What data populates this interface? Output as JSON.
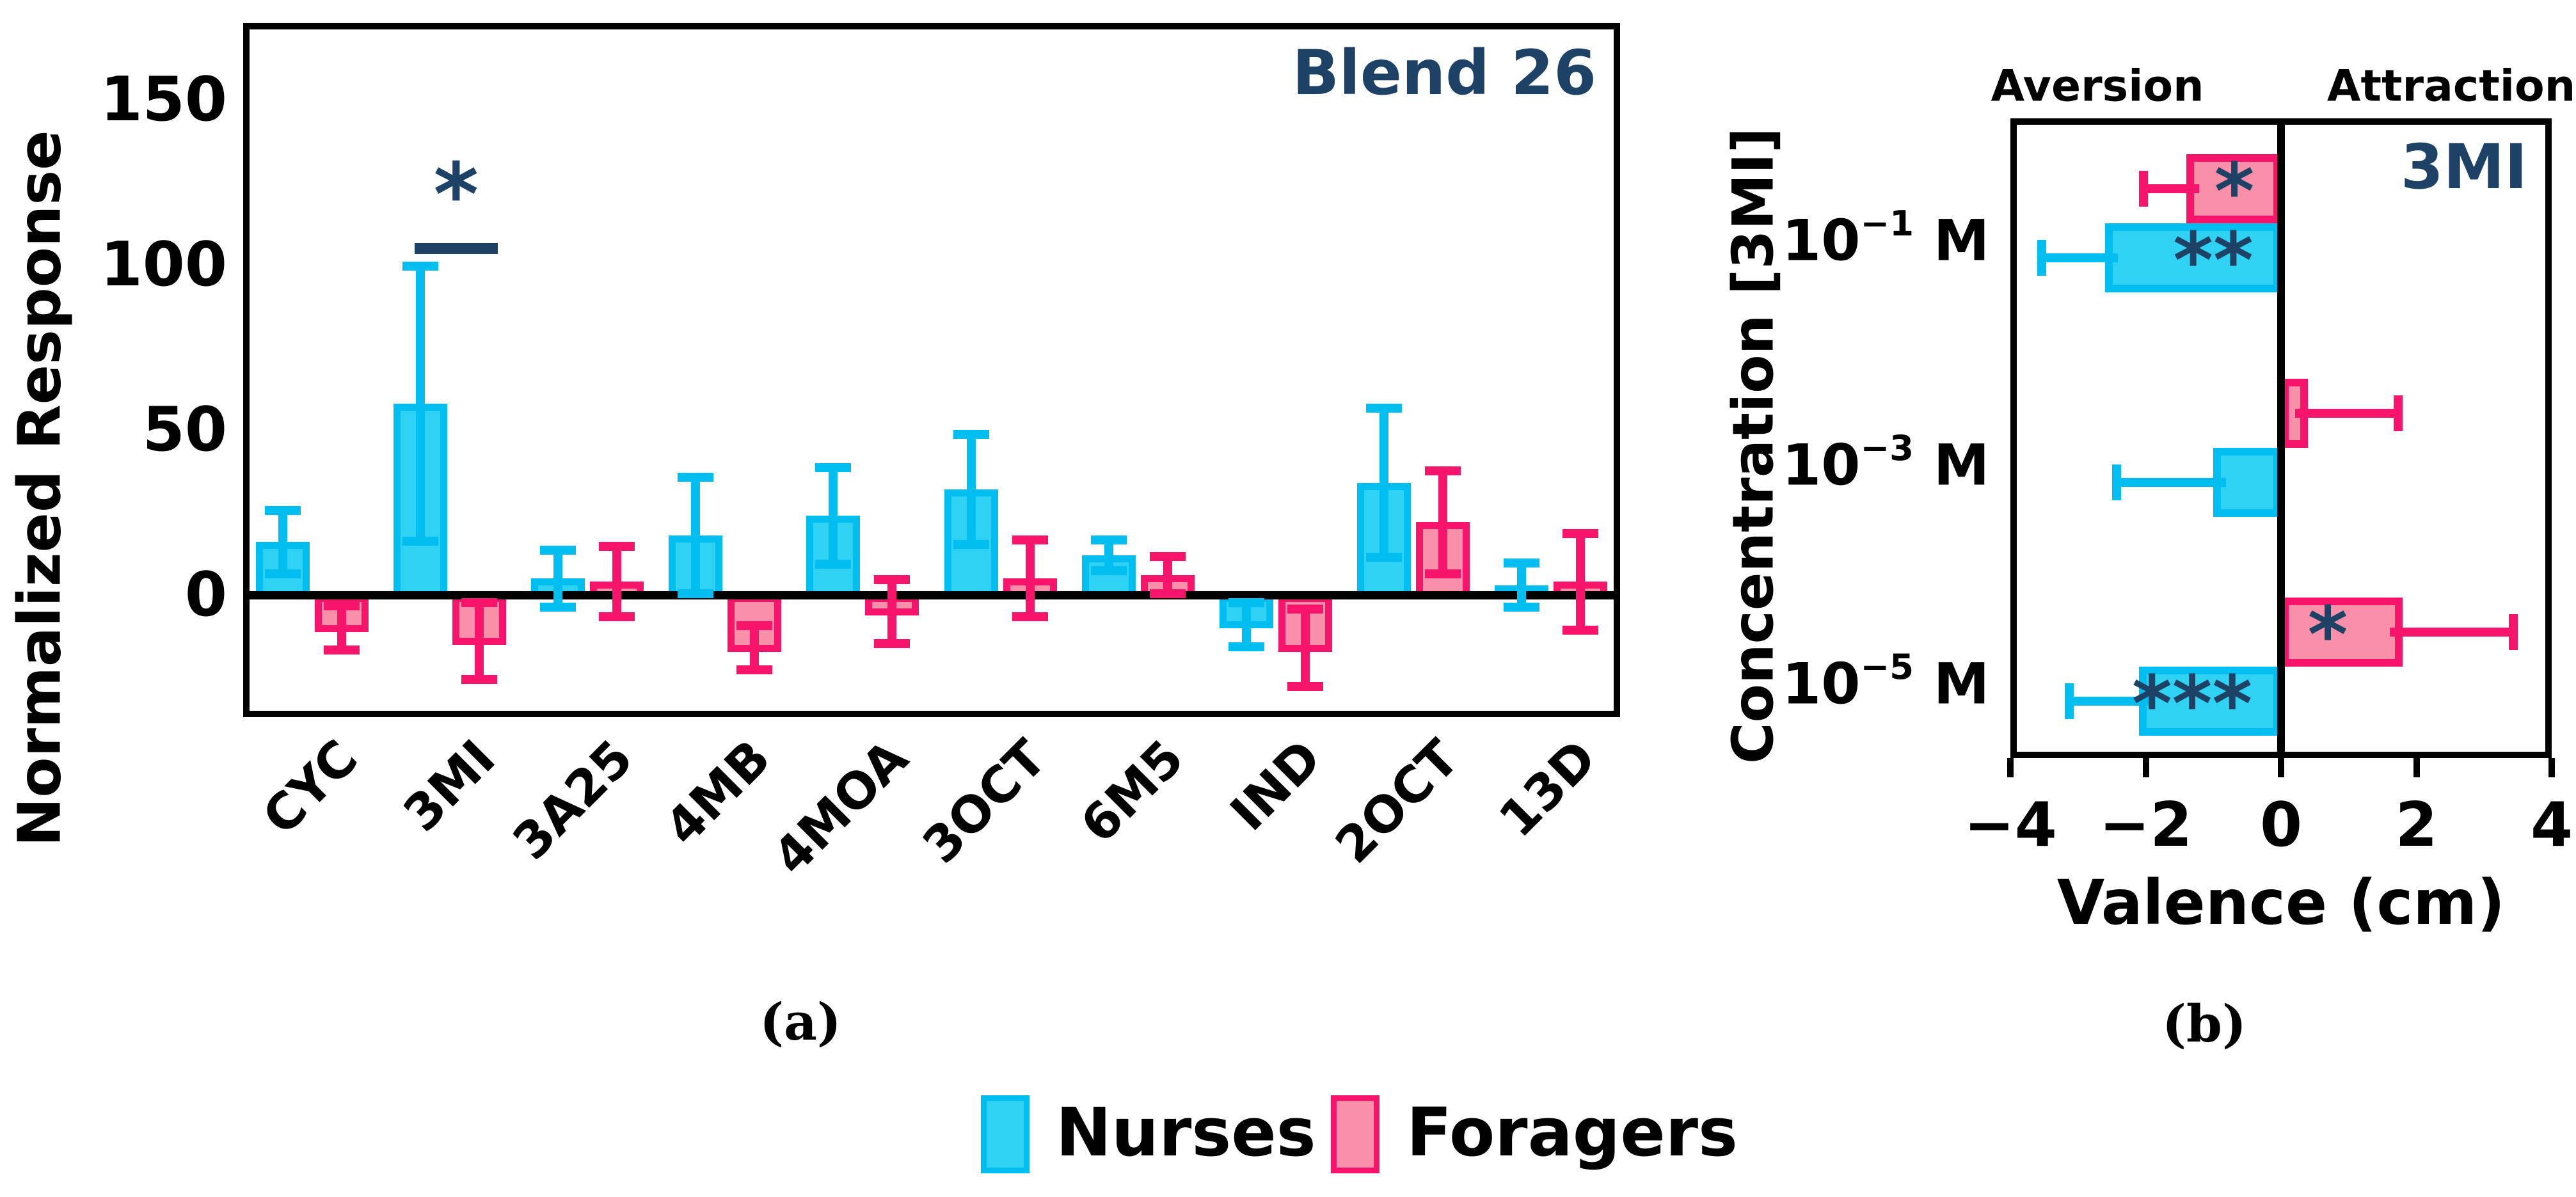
{
  "captions": {
    "a": "(a)",
    "b": "(b)"
  },
  "colors": {
    "nurses_fill": "#30D2F4",
    "nurses_border": "#00BEEF",
    "foragers_fill": "#F98FA9",
    "foragers_border": "#F7146B",
    "navy_accent": "#1E4266",
    "axis_black": "#000000"
  },
  "legend": {
    "items": [
      {
        "label": "Nurses",
        "swatch": "nurses"
      },
      {
        "label": "Foragers",
        "swatch": "foragers"
      }
    ]
  },
  "chart_data": [
    {
      "panel": "a",
      "type": "bar",
      "title": "Blend 26",
      "ylabel": "Normalized Response",
      "xlabel": "",
      "categories": [
        "CYC",
        "3MI",
        "3A25",
        "4MB",
        "4MOA",
        "3OCT",
        "6M5",
        "IND",
        "2OCT",
        "13D"
      ],
      "yticks": [
        0,
        50,
        100,
        150
      ],
      "ylim": [
        -37,
        173
      ],
      "grid": false,
      "series": [
        {
          "name": "Nurses",
          "values": [
            16,
            58,
            5,
            18,
            24,
            32,
            12,
            -9,
            34,
            3
          ],
          "errors": [
            11,
            43,
            10,
            19,
            16,
            18,
            6,
            8,
            24,
            8
          ]
        },
        {
          "name": "Foragers",
          "values": [
            -10,
            -14,
            4,
            -16,
            -5,
            5,
            6,
            -16,
            22,
            4
          ],
          "errors": [
            8,
            13,
            12,
            8,
            11,
            13,
            7,
            13,
            17,
            16
          ]
        }
      ],
      "significance": [
        {
          "category": "3MI",
          "label": "*"
        }
      ]
    },
    {
      "panel": "b",
      "type": "horizontal-bar",
      "title": "3MI",
      "xlabel": "Valence (cm)",
      "ylabel": "Concentration [3MI]",
      "top_labels": [
        "Aversion",
        "Attraction"
      ],
      "categories": [
        "10⁻¹ M",
        "10⁻³ M",
        "10⁻⁵ M"
      ],
      "categories_parts": [
        {
          "base": "10",
          "exp": "−1",
          "unit": "M"
        },
        {
          "base": "10",
          "exp": "−3",
          "unit": "M"
        },
        {
          "base": "10",
          "exp": "−5",
          "unit": "M"
        }
      ],
      "xticks": [
        -4,
        -2,
        0,
        2,
        4
      ],
      "xlim": [
        -4,
        4
      ],
      "grid": false,
      "series": [
        {
          "name": "Foragers",
          "values": [
            -1.4,
            0.4,
            1.8
          ],
          "errors": [
            0.7,
            1.4,
            1.7
          ],
          "significance": [
            "*",
            "",
            "*"
          ]
        },
        {
          "name": "Nurses",
          "values": [
            -2.6,
            -1.0,
            -2.1
          ],
          "errors": [
            1.0,
            1.5,
            1.1
          ],
          "significance": [
            "**",
            "",
            "***"
          ]
        }
      ]
    }
  ]
}
